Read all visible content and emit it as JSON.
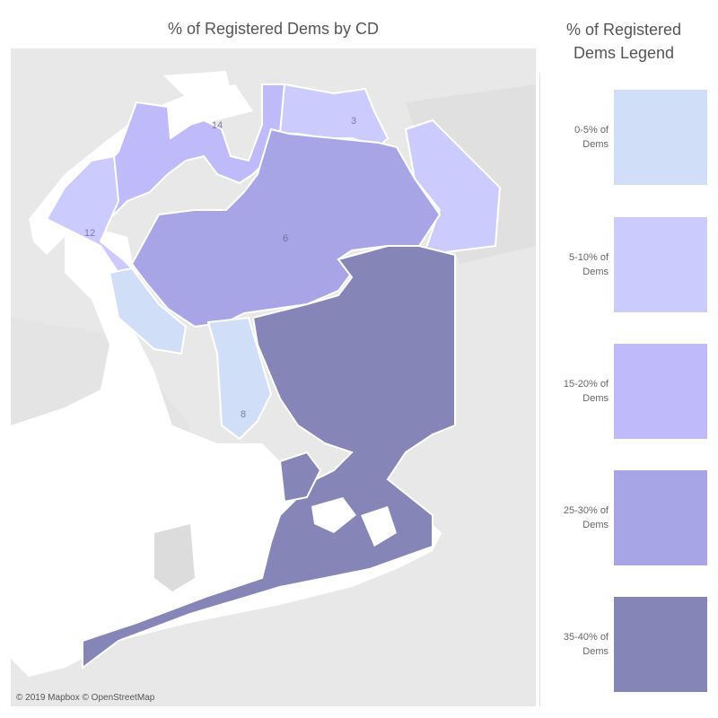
{
  "map": {
    "title": "% of Registered Dems by CD",
    "attribution": "© 2019 Mapbox © OpenStreetMap",
    "district_labels": [
      "3",
      "14",
      "12",
      "6",
      "8"
    ],
    "colors": {
      "land": "#e8e8e8",
      "water": "#ffffff",
      "district_0_5": "#d1def8",
      "district_5_10": "#cccbfd",
      "district_15_20": "#bfbbfb",
      "district_25_30": "#a8a5e6",
      "district_35_40": "#8585b8",
      "borders": "#ffffff"
    }
  },
  "legend": {
    "title_line1": "% of Registered",
    "title_line2": "Dems Legend",
    "items": [
      {
        "label_line1": "0-5% of",
        "label_line2": "Dems",
        "color": "#d1def8"
      },
      {
        "label_line1": "5-10% of",
        "label_line2": "Dems",
        "color": "#cccbfd"
      },
      {
        "label_line1": "15-20% of",
        "label_line2": "Dems",
        "color": "#bfbbfb"
      },
      {
        "label_line1": "25-30% of",
        "label_line2": "Dems",
        "color": "#a8a5e6"
      },
      {
        "label_line1": "35-40% of",
        "label_line2": "Dems",
        "color": "#8585b8"
      }
    ]
  }
}
